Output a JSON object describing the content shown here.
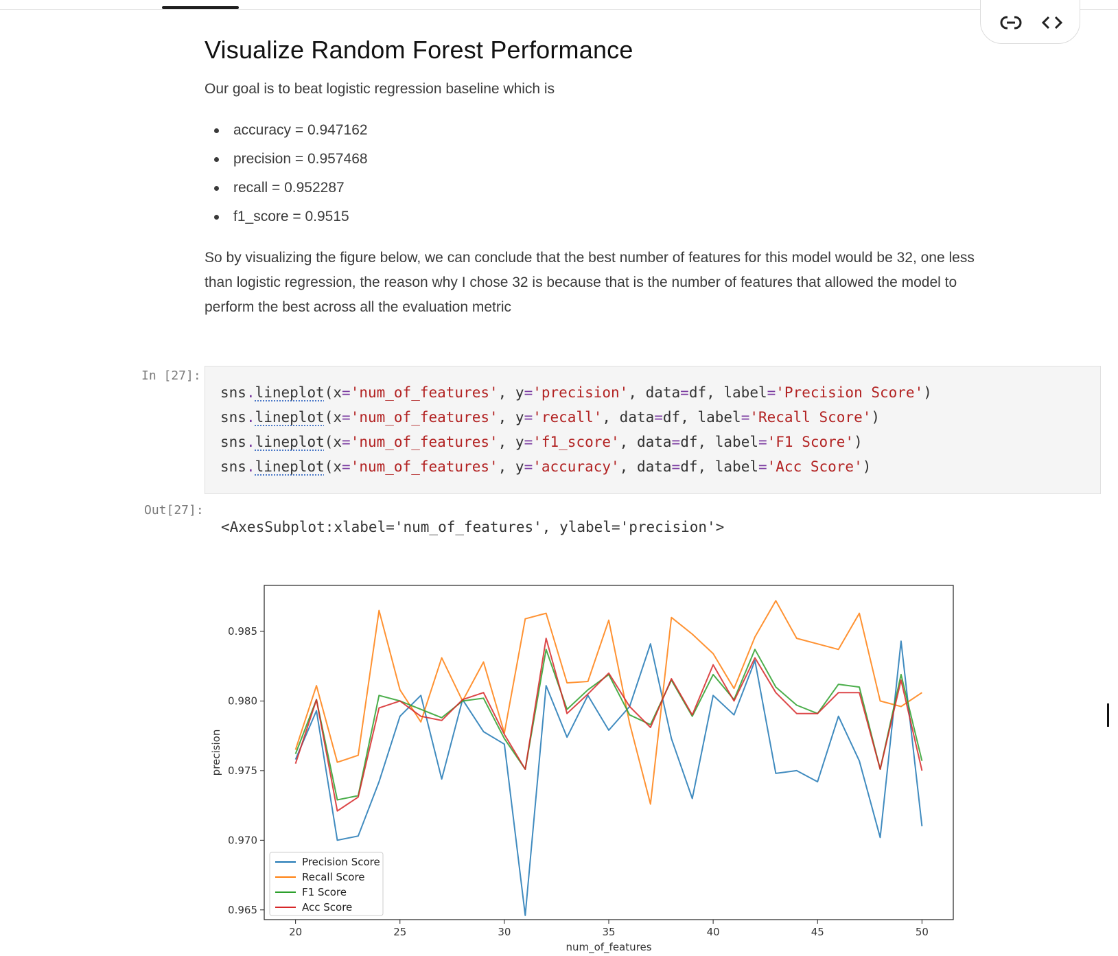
{
  "toolbar": {
    "link_icon": "link-icon",
    "code_icon": "code-brackets-icon"
  },
  "markdown": {
    "title": "Visualize Random Forest Performance",
    "intro": "Our goal is to beat logistic regression baseline which is",
    "metrics": [
      "accuracy = 0.947162",
      "precision = 0.957468",
      "recall = 0.952287",
      "f1_score = 0.9515"
    ],
    "conclusion_lines": [
      "So by visualizing the figure below, we can conclude that the best number of features for this model would be 32, one less",
      "than logistic regression, the reason why I chose 32 is because that is the number of features that allowed the model to",
      "perform the best across all the evaluation metric"
    ]
  },
  "cell": {
    "in_prompt": "In [27]:",
    "out_prompt": "Out[27]:",
    "code_lines": [
      {
        "y": "precision",
        "label": "Precision Score"
      },
      {
        "y": "recall",
        "label": "Recall Score"
      },
      {
        "y": "f1_score",
        "label": "F1 Score"
      },
      {
        "y": "accuracy",
        "label": "Acc Score"
      }
    ],
    "output_text": "<AxesSubplot:xlabel='num_of_features', ylabel='precision'>"
  },
  "chart_data": {
    "type": "line",
    "xlabel": "num_of_features",
    "ylabel": "precision",
    "xlim": [
      18.5,
      51.5
    ],
    "ylim": [
      0.9643,
      0.9883
    ],
    "xticks": [
      20,
      25,
      30,
      35,
      40,
      45,
      50
    ],
    "yticks": [
      0.965,
      0.97,
      0.975,
      0.98,
      0.985
    ],
    "ytick_labels": [
      "0.965",
      "0.970",
      "0.975",
      "0.980",
      "0.985"
    ],
    "grid": false,
    "legend_position": "lower-left",
    "x": [
      20,
      21,
      22,
      23,
      24,
      25,
      26,
      27,
      28,
      29,
      30,
      31,
      32,
      33,
      34,
      35,
      36,
      37,
      38,
      39,
      40,
      41,
      42,
      43,
      44,
      45,
      46,
      47,
      48,
      49,
      50
    ],
    "series": [
      {
        "name": "Precision Score",
        "color": "#1f77b4",
        "values": [
          0.9758,
          0.9793,
          0.97,
          0.9703,
          0.9742,
          0.9789,
          0.9804,
          0.9744,
          0.9801,
          0.9778,
          0.9769,
          0.9646,
          0.9811,
          0.9774,
          0.9804,
          0.9779,
          0.9796,
          0.9841,
          0.9773,
          0.973,
          0.9804,
          0.979,
          0.9829,
          0.9748,
          0.975,
          0.9742,
          0.9789,
          0.9757,
          0.9702,
          0.9843,
          0.971
        ]
      },
      {
        "name": "Recall Score",
        "color": "#ff7f0e",
        "values": [
          0.9765,
          0.9811,
          0.9756,
          0.9761,
          0.9865,
          0.9808,
          0.9785,
          0.9831,
          0.98,
          0.9828,
          0.9777,
          0.9859,
          0.9863,
          0.9813,
          0.9814,
          0.9858,
          0.9784,
          0.9726,
          0.986,
          0.9848,
          0.9834,
          0.9809,
          0.9846,
          0.9872,
          0.9845,
          0.9841,
          0.9837,
          0.9863,
          0.98,
          0.9796,
          0.9806
        ]
      },
      {
        "name": "F1 Score",
        "color": "#2ca02c",
        "values": [
          0.9762,
          0.9801,
          0.9729,
          0.9732,
          0.9804,
          0.98,
          0.9794,
          0.9788,
          0.98,
          0.9802,
          0.9773,
          0.9751,
          0.9837,
          0.9794,
          0.9808,
          0.9819,
          0.979,
          0.9783,
          0.9815,
          0.9789,
          0.9819,
          0.9801,
          0.9837,
          0.981,
          0.9797,
          0.9791,
          0.9812,
          0.981,
          0.9751,
          0.9819,
          0.9757
        ]
      },
      {
        "name": "Acc Score",
        "color": "#d62728",
        "values": [
          0.9755,
          0.9801,
          0.9721,
          0.9731,
          0.9795,
          0.98,
          0.9789,
          0.9786,
          0.9801,
          0.9806,
          0.9776,
          0.9751,
          0.9845,
          0.9791,
          0.9805,
          0.982,
          0.9796,
          0.9781,
          0.9816,
          0.979,
          0.9826,
          0.98,
          0.9831,
          0.9806,
          0.9791,
          0.9791,
          0.9806,
          0.9806,
          0.9751,
          0.9815,
          0.975
        ]
      }
    ]
  }
}
